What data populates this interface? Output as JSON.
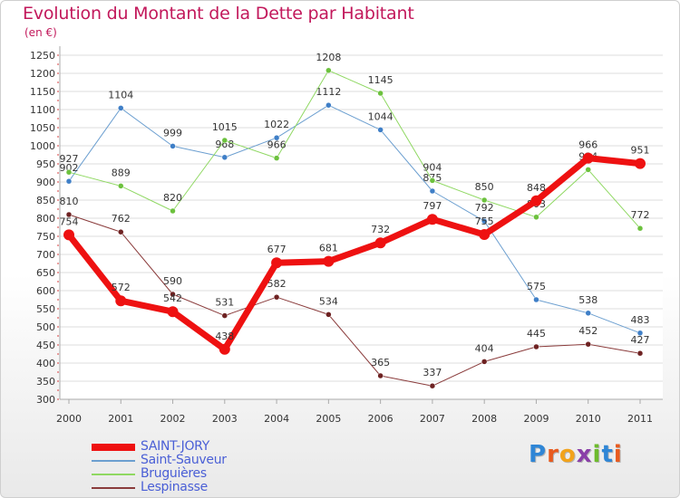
{
  "header": {
    "title": "Evolution du Montant de la Dette par Habitant",
    "subtitle": "(en €)"
  },
  "brand": {
    "name": "Proxiti",
    "letters": [
      "P",
      "r",
      "o",
      "x",
      "i",
      "t",
      "i"
    ],
    "colors": [
      "#2f86d6",
      "#e85a1e",
      "#f2a31b",
      "#8a3fa8",
      "#6dbb2c",
      "#2f86d6",
      "#e85a1e"
    ]
  },
  "chart_data": {
    "type": "line",
    "title": "Evolution du Montant de la Dette par Habitant",
    "subtitle": "(en €)",
    "xlabel": "",
    "ylabel": "",
    "x": [
      "2000",
      "2001",
      "2002",
      "2003",
      "2004",
      "2005",
      "2006",
      "2007",
      "2008",
      "2009",
      "2010",
      "2011"
    ],
    "ylim": [
      300,
      1250
    ],
    "yticks": [
      "300",
      "350",
      "400",
      "450",
      "500",
      "550",
      "600",
      "650",
      "700",
      "750",
      "800",
      "850",
      "900",
      "950",
      "1000",
      "1050",
      "1100",
      "1150",
      "1200",
      "1250"
    ],
    "grid": "horizontal",
    "legend": "bottom-left",
    "series": [
      {
        "name": "Saint-Sauveur",
        "color": "#6c9fd0",
        "marker": "#3f7fc7",
        "width": 1,
        "values": [
          902,
          1104,
          999,
          968,
          1022,
          1112,
          1044,
          875,
          792,
          575,
          538,
          483
        ]
      },
      {
        "name": "Bruguières",
        "color": "#8fd862",
        "marker": "#6cc13d",
        "width": 1,
        "values": [
          927,
          889,
          820,
          1015,
          966,
          1208,
          1145,
          904,
          850,
          803,
          934,
          772
        ]
      },
      {
        "name": "Lespinasse",
        "color": "#8a3b3b",
        "marker": "#6e2222",
        "width": 1,
        "values": [
          810,
          762,
          590,
          531,
          582,
          534,
          365,
          337,
          404,
          445,
          452,
          427
        ]
      },
      {
        "name": "SAINT-JORY",
        "color": "#ee1111",
        "marker": "#ee1111",
        "width": 7,
        "values": [
          754,
          572,
          542,
          438,
          677,
          681,
          732,
          797,
          755,
          848,
          966,
          951
        ]
      }
    ],
    "legend_order": [
      "SAINT-JORY",
      "Saint-Sauveur",
      "Bruguières",
      "Lespinasse"
    ]
  }
}
